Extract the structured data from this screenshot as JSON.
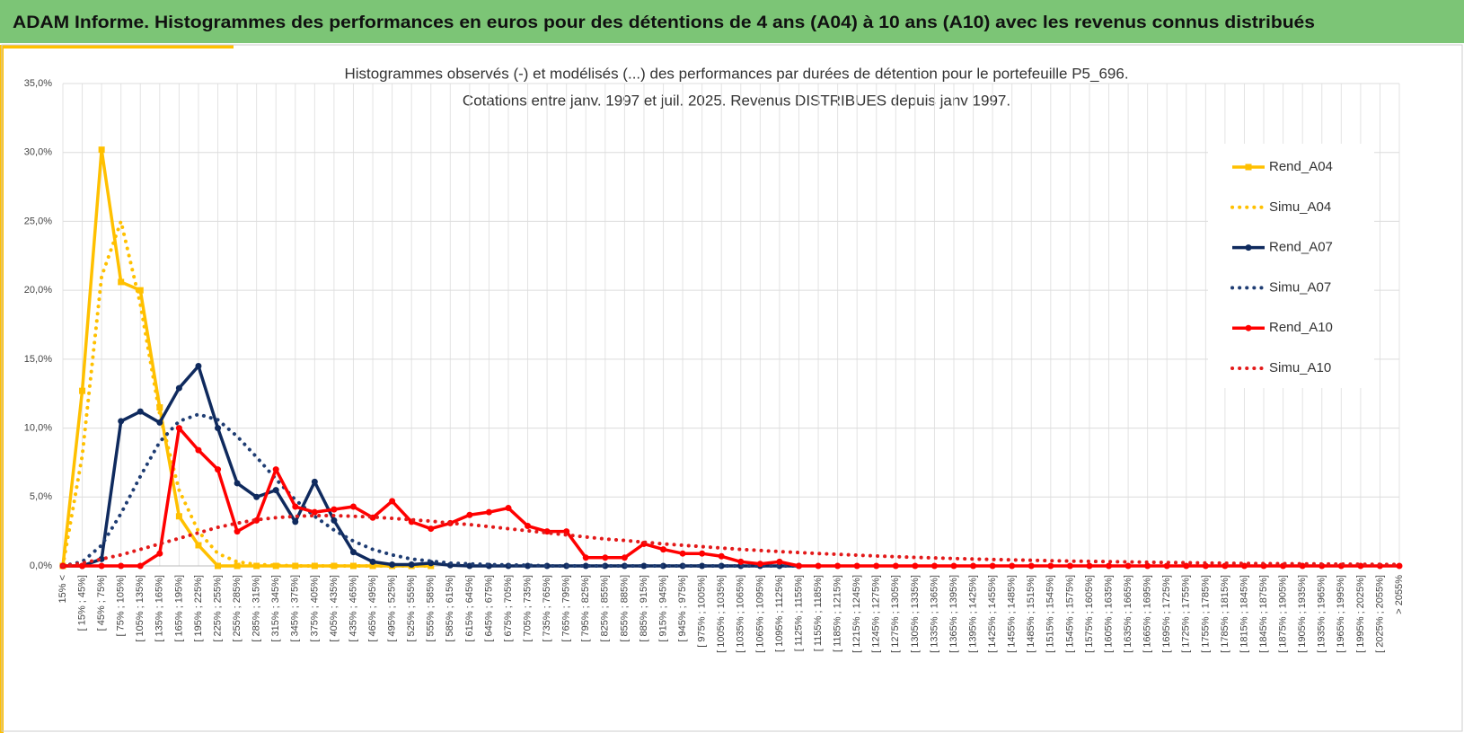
{
  "header": {
    "title": "ADAM Informe. Histogrammes des performances en euros pour des détentions de 4 ans (A04) à 10 ans (A10) avec les revenus connus distribués"
  },
  "chart_data": {
    "type": "line",
    "title": "Histogrammes observés (-) et modélisés (...) des performances par durées de détention pour le portefeuille P5_696.",
    "subtitle": "Cotations entre janv. 1997 et juil. 2025. Revenus DISTRIBUES depuis janv 1997.",
    "categories": [
      "15% <",
      "[ 15% ; 45%]",
      "[ 45% ; 75%]",
      "[ 75% ; 105%]",
      "[ 105% ; 135%]",
      "[ 135% ; 165%]",
      "[ 165% ; 195%]",
      "[ 195% ; 225%]",
      "[ 225% ; 255%]",
      "[ 255% ; 285%]",
      "[ 285% ; 315%]",
      "[ 315% ; 345%]",
      "[ 345% ; 375%]",
      "[ 375% ; 405%]",
      "[ 405% ; 435%]",
      "[ 435% ; 465%]",
      "[ 465% ; 495%]",
      "[ 495% ; 525%]",
      "[ 525% ; 555%]",
      "[ 555% ; 585%]",
      "[ 585% ; 615%]",
      "[ 615% ; 645%]",
      "[ 645% ; 675%]",
      "[ 675% ; 705%]",
      "[ 705% ; 735%]",
      "[ 735% ; 765%]",
      "[ 765% ; 795%]",
      "[ 795% ; 825%]",
      "[ 825% ; 855%]",
      "[ 855% ; 885%]",
      "[ 885% ; 915%]",
      "[ 915% ; 945%]",
      "[ 945% ; 975%]",
      "[ 975% ; 1005%]",
      "[ 1005% ; 1035%]",
      "[ 1035% ; 1065%]",
      "[ 1065% ; 1095%]",
      "[ 1095% ; 1125%]",
      "[ 1125% ; 1155%]",
      "[ 1155% ; 1185%]",
      "[ 1185% ; 1215%]",
      "[ 1215% ; 1245%]",
      "[ 1245% ; 1275%]",
      "[ 1275% ; 1305%]",
      "[ 1305% ; 1335%]",
      "[ 1335% ; 1365%]",
      "[ 1365% ; 1395%]",
      "[ 1395% ; 1425%]",
      "[ 1425% ; 1455%]",
      "[ 1455% ; 1485%]",
      "[ 1485% ; 1515%]",
      "[ 1515% ; 1545%]",
      "[ 1545% ; 1575%]",
      "[ 1575% ; 1605%]",
      "[ 1605% ; 1635%]",
      "[ 1635% ; 1665%]",
      "[ 1665% ; 1695%]",
      "[ 1695% ; 1725%]",
      "[ 1725% ; 1755%]",
      "[ 1755% ; 1785%]",
      "[ 1785% ; 1815%]",
      "[ 1815% ; 1845%]",
      "[ 1845% ; 1875%]",
      "[ 1875% ; 1905%]",
      "[ 1905% ; 1935%]",
      "[ 1935% ; 1965%]",
      "[ 1965% ; 1995%]",
      "[ 1995% ; 2025%]",
      "[ 2025% ; 2055%]",
      "> 2055%"
    ],
    "series": [
      {
        "name": "Rend_A04",
        "color": "#ffc000",
        "dash": false,
        "marker": "square",
        "values": [
          0,
          12.7,
          30.2,
          20.6,
          20.0,
          11.5,
          3.6,
          1.5,
          0,
          0,
          0,
          0,
          0,
          0,
          0,
          0,
          0,
          0,
          0,
          0,
          null,
          null,
          null,
          null,
          null,
          null,
          null,
          null,
          null,
          null,
          null,
          null,
          null,
          null,
          null,
          null,
          null,
          null,
          null,
          null,
          null,
          null,
          null,
          null,
          null,
          null,
          null,
          null,
          null,
          null,
          null,
          null,
          null,
          null,
          null,
          null,
          null,
          null,
          null,
          null,
          null,
          null,
          null,
          null,
          null,
          null,
          null,
          null,
          null,
          null
        ]
      },
      {
        "name": "Simu_A04",
        "color": "#ffc000",
        "dash": true,
        "marker": "none",
        "values": [
          0,
          8,
          21,
          25,
          19,
          11,
          5.5,
          2.5,
          0.9,
          0.3,
          0.1,
          0.05,
          0,
          0,
          0,
          0,
          0,
          0,
          0,
          0,
          null,
          null,
          null,
          null,
          null,
          null,
          null,
          null,
          null,
          null,
          null,
          null,
          null,
          null,
          null,
          null,
          null,
          null,
          null,
          null,
          null,
          null,
          null,
          null,
          null,
          null,
          null,
          null,
          null,
          null,
          null,
          null,
          null,
          null,
          null,
          null,
          null,
          null,
          null,
          null,
          null,
          null,
          null,
          null,
          null,
          null,
          null,
          null,
          null,
          null
        ]
      },
      {
        "name": "Rend_A07",
        "color": "#0f2a5e",
        "dash": false,
        "marker": "circle",
        "values": [
          0,
          0,
          0.5,
          10.5,
          11.2,
          10.4,
          12.9,
          14.5,
          10.0,
          6.0,
          5.0,
          5.5,
          3.2,
          6.1,
          3.3,
          1.0,
          0.3,
          0.1,
          0.1,
          0.2,
          0.05,
          0,
          0,
          0,
          0,
          0,
          0,
          0,
          0,
          0,
          0,
          0,
          0,
          0,
          0,
          0,
          0,
          0,
          0,
          null,
          null,
          null,
          null,
          null,
          null,
          null,
          null,
          null,
          null,
          null,
          null,
          null,
          null,
          null,
          null,
          null,
          null,
          null,
          null,
          null,
          null,
          null,
          null,
          null,
          null,
          null,
          null,
          null,
          null,
          null
        ]
      },
      {
        "name": "Simu_A07",
        "color": "#1f3d73",
        "dash": true,
        "marker": "none",
        "values": [
          0,
          0.3,
          1.5,
          3.8,
          6.5,
          9,
          10.5,
          11,
          10.6,
          9.4,
          7.9,
          6.3,
          4.8,
          3.6,
          2.6,
          1.8,
          1.2,
          0.8,
          0.5,
          0.35,
          0.2,
          0.15,
          0.1,
          0.07,
          0.05,
          0,
          0,
          0,
          0,
          0,
          0,
          0,
          0,
          0,
          0,
          0,
          0,
          0,
          0,
          null,
          null,
          null,
          null,
          null,
          null,
          null,
          null,
          null,
          null,
          null,
          null,
          null,
          null,
          null,
          null,
          null,
          null,
          null,
          null,
          null,
          null,
          null,
          null,
          null,
          null,
          null,
          null,
          null,
          null,
          null
        ]
      },
      {
        "name": "Rend_A10",
        "color": "#ff0000",
        "dash": false,
        "marker": "circle",
        "values": [
          0,
          0,
          0,
          0,
          0,
          0.9,
          10.0,
          8.4,
          7.0,
          2.5,
          3.3,
          7.0,
          4.3,
          3.9,
          4.1,
          4.3,
          3.5,
          4.7,
          3.2,
          2.7,
          3.1,
          3.7,
          3.9,
          4.2,
          2.9,
          2.5,
          2.5,
          0.6,
          0.6,
          0.6,
          1.6,
          1.2,
          0.9,
          0.9,
          0.7,
          0.3,
          0.15,
          0.3,
          0,
          0,
          0,
          0,
          0,
          0,
          0,
          0,
          0,
          0,
          0,
          0,
          0,
          0,
          0,
          0,
          0,
          0,
          0,
          0,
          0,
          0,
          0,
          0,
          0,
          0,
          0,
          0,
          0,
          0,
          0,
          0
        ]
      },
      {
        "name": "Simu_A10",
        "color": "#e31a1a",
        "dash": true,
        "marker": "none",
        "values": [
          0,
          0.2,
          0.5,
          0.8,
          1.2,
          1.6,
          2.0,
          2.4,
          2.8,
          3.1,
          3.35,
          3.5,
          3.6,
          3.65,
          3.65,
          3.6,
          3.55,
          3.45,
          3.35,
          3.25,
          3.1,
          3.0,
          2.85,
          2.7,
          2.55,
          2.4,
          2.25,
          2.1,
          1.95,
          1.85,
          1.72,
          1.6,
          1.5,
          1.4,
          1.3,
          1.2,
          1.12,
          1.04,
          0.97,
          0.9,
          0.84,
          0.78,
          0.72,
          0.67,
          0.62,
          0.58,
          0.54,
          0.5,
          0.47,
          0.44,
          0.41,
          0.38,
          0.35,
          0.33,
          0.31,
          0.29,
          0.27,
          0.25,
          0.23,
          0.21,
          0.2,
          0.18,
          0.17,
          0.16,
          0.15,
          0.14,
          0.13,
          0.12,
          0.11,
          0.1
        ]
      }
    ],
    "ylim": [
      0,
      35
    ],
    "yticks": [
      {
        "value": 0,
        "label": "0,0%"
      },
      {
        "value": 5,
        "label": "5,0%"
      },
      {
        "value": 10,
        "label": "10,0%"
      },
      {
        "value": 15,
        "label": "15,0%"
      },
      {
        "value": 20,
        "label": "20,0%"
      },
      {
        "value": 25,
        "label": "25,0%"
      },
      {
        "value": 30,
        "label": "30,0%"
      },
      {
        "value": 35,
        "label": "35,0%"
      }
    ],
    "grid": true,
    "legend": "right"
  }
}
